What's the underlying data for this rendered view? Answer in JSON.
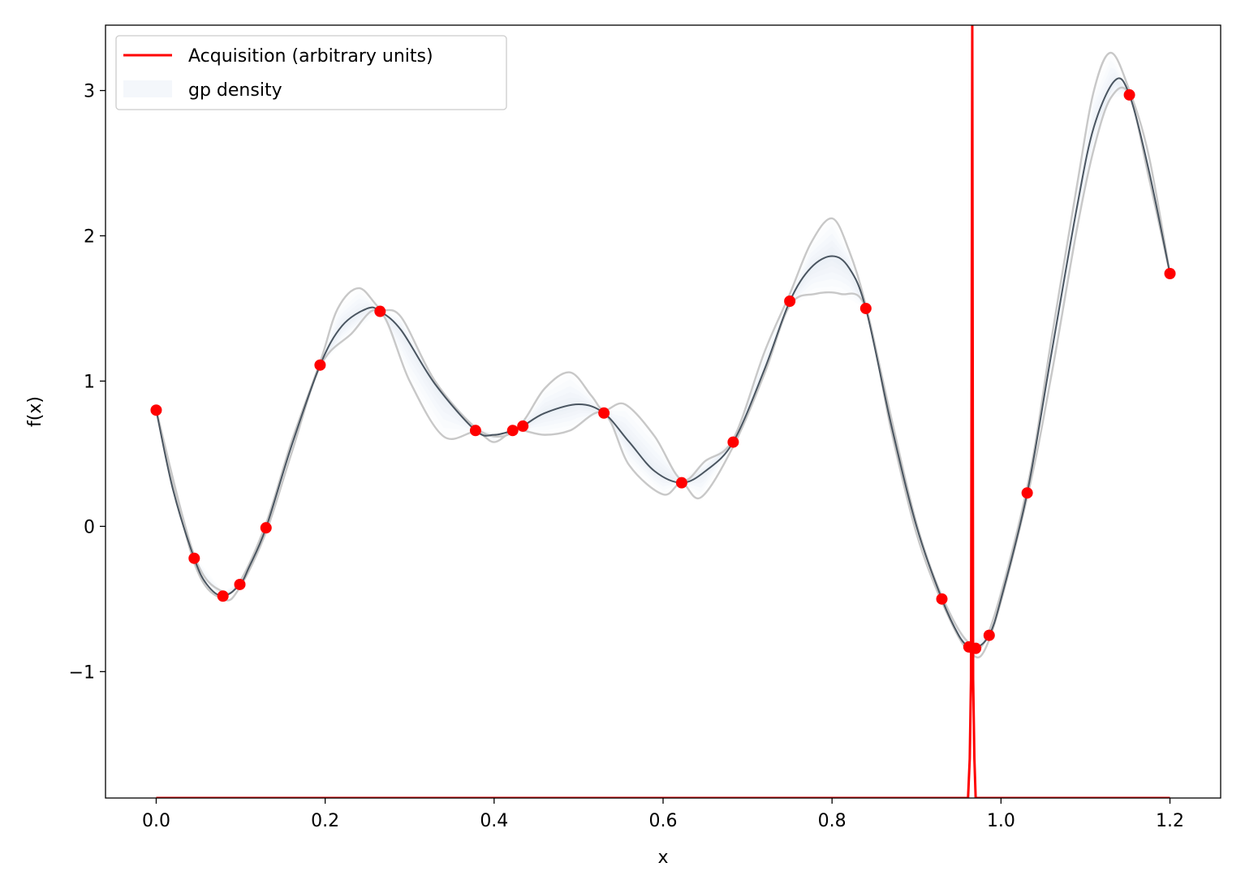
{
  "chart_data": {
    "type": "line",
    "title": "",
    "xlabel": "x",
    "ylabel": "f(x)",
    "xlim": [
      -0.06,
      1.26
    ],
    "ylim": [
      -1.87,
      3.45
    ],
    "xticks": [
      0.0,
      0.2,
      0.4,
      0.6,
      0.8,
      1.0,
      1.2
    ],
    "xtick_labels": [
      "0.0",
      "0.2",
      "0.4",
      "0.6",
      "0.8",
      "1.0",
      "1.2"
    ],
    "yticks": [
      -1,
      0,
      1,
      2,
      3
    ],
    "ytick_labels": [
      "−1",
      "0",
      "1",
      "2",
      "3"
    ],
    "grid": false,
    "legend": {
      "placement": "top-left",
      "entries": [
        {
          "label": "Acquisition (arbitrary units)",
          "style": "line",
          "color": "#ff0000"
        },
        {
          "label": "gp density",
          "style": "patch",
          "color": "#f4f7fb"
        }
      ]
    },
    "colors": {
      "acquisition": "#ff0000",
      "observations": "#ff0000",
      "mean": "#4a5560",
      "band_edge": "#c8c8c8",
      "band_fill": "#dde7f2"
    },
    "observations": {
      "x": [
        0.0,
        0.045,
        0.079,
        0.099,
        0.13,
        0.194,
        0.265,
        0.378,
        0.422,
        0.434,
        0.53,
        0.622,
        0.683,
        0.75,
        0.84,
        0.93,
        0.962,
        0.97,
        0.986,
        1.031,
        1.152,
        1.2
      ],
      "y": [
        0.8,
        -0.22,
        -0.48,
        -0.4,
        -0.01,
        1.11,
        1.48,
        0.66,
        0.66,
        0.69,
        0.78,
        0.3,
        0.58,
        1.55,
        1.5,
        -0.5,
        -0.83,
        -0.84,
        -0.75,
        0.23,
        2.97,
        1.74
      ]
    },
    "gp_mean": {
      "x": [
        0.0,
        0.02,
        0.045,
        0.06,
        0.079,
        0.099,
        0.11,
        0.13,
        0.16,
        0.194,
        0.22,
        0.25,
        0.265,
        0.29,
        0.33,
        0.378,
        0.4,
        0.422,
        0.434,
        0.46,
        0.5,
        0.53,
        0.56,
        0.59,
        0.622,
        0.65,
        0.683,
        0.72,
        0.75,
        0.775,
        0.8,
        0.82,
        0.84,
        0.87,
        0.9,
        0.93,
        0.95,
        0.962,
        0.97,
        0.986,
        1.0,
        1.031,
        1.06,
        1.09,
        1.11,
        1.135,
        1.152,
        1.175,
        1.2
      ],
      "y": [
        0.8,
        0.25,
        -0.22,
        -0.4,
        -0.48,
        -0.4,
        -0.28,
        -0.01,
        0.55,
        1.11,
        1.38,
        1.5,
        1.48,
        1.35,
        0.98,
        0.66,
        0.63,
        0.66,
        0.69,
        0.78,
        0.84,
        0.78,
        0.58,
        0.38,
        0.3,
        0.38,
        0.58,
        1.08,
        1.55,
        1.78,
        1.86,
        1.78,
        1.5,
        0.7,
        0.0,
        -0.5,
        -0.75,
        -0.83,
        -0.84,
        -0.75,
        -0.5,
        0.23,
        1.2,
        2.2,
        2.75,
        3.07,
        2.97,
        2.45,
        1.74
      ]
    },
    "band_upper": {
      "x": [
        0.0,
        0.045,
        0.079,
        0.099,
        0.13,
        0.16,
        0.194,
        0.215,
        0.24,
        0.265,
        0.29,
        0.33,
        0.378,
        0.41,
        0.434,
        0.46,
        0.49,
        0.515,
        0.53,
        0.555,
        0.59,
        0.622,
        0.65,
        0.683,
        0.72,
        0.75,
        0.775,
        0.8,
        0.82,
        0.84,
        0.87,
        0.9,
        0.93,
        0.962,
        0.986,
        1.031,
        1.06,
        1.09,
        1.11,
        1.13,
        1.152,
        1.175,
        1.2
      ],
      "y": [
        0.8,
        -0.2,
        -0.45,
        -0.38,
        0.02,
        0.58,
        1.13,
        1.5,
        1.64,
        1.5,
        1.44,
        1.0,
        0.68,
        0.62,
        0.72,
        0.95,
        1.06,
        0.9,
        0.8,
        0.84,
        0.62,
        0.32,
        0.45,
        0.6,
        1.2,
        1.6,
        1.95,
        2.12,
        1.9,
        1.52,
        0.75,
        0.02,
        -0.48,
        -0.8,
        -0.72,
        0.27,
        1.3,
        2.35,
        3.0,
        3.26,
        3.0,
        2.55,
        1.74
      ]
    },
    "band_lower": {
      "x": [
        0.0,
        0.045,
        0.079,
        0.099,
        0.13,
        0.16,
        0.194,
        0.23,
        0.265,
        0.3,
        0.34,
        0.378,
        0.4,
        0.422,
        0.434,
        0.46,
        0.49,
        0.53,
        0.56,
        0.6,
        0.622,
        0.645,
        0.683,
        0.72,
        0.75,
        0.78,
        0.81,
        0.84,
        0.87,
        0.9,
        0.93,
        0.962,
        0.986,
        1.031,
        1.06,
        1.09,
        1.11,
        1.13,
        1.152,
        1.175,
        1.2
      ],
      "y": [
        0.8,
        -0.25,
        -0.5,
        -0.42,
        -0.04,
        0.5,
        1.1,
        1.32,
        1.48,
        1.0,
        0.62,
        0.65,
        0.58,
        0.66,
        0.66,
        0.63,
        0.66,
        0.78,
        0.42,
        0.22,
        0.3,
        0.2,
        0.55,
        1.05,
        1.52,
        1.6,
        1.6,
        1.5,
        0.66,
        -0.05,
        -0.52,
        -0.86,
        -0.78,
        0.2,
        1.05,
        2.05,
        2.6,
        2.95,
        2.97,
        2.4,
        1.74
      ]
    },
    "acquisition": {
      "x": [
        0.0,
        0.961,
        0.963,
        0.9645,
        0.966,
        0.967,
        0.9685,
        0.97,
        1.2
      ],
      "y": [
        -1.87,
        -1.87,
        -1.6,
        -1.05,
        3.45,
        -1.05,
        -1.6,
        -1.87,
        -1.87
      ]
    }
  }
}
